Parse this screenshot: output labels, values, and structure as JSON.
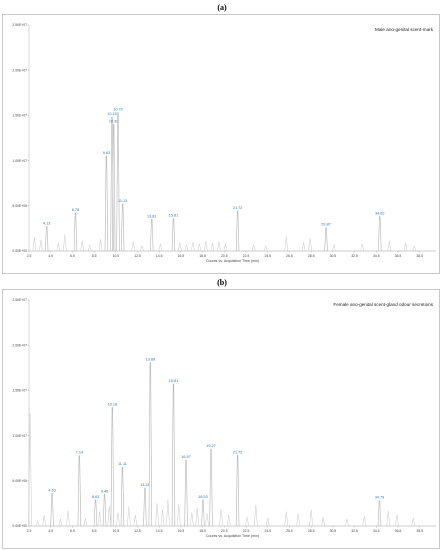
{
  "chart_data": [
    {
      "panel_label": "(a)",
      "type": "line",
      "title": "Male ano-genital scent-mark",
      "xlabel": "Counts vs. Acquisition Time (min)",
      "ylabel": "",
      "xlim": [
        2.5,
        40
      ],
      "ylim": [
        0,
        25000000
      ],
      "x_ticks": [
        "2.5",
        "4.5",
        "6.5",
        "8.5",
        "10.5",
        "12.5",
        "14.5",
        "16.5",
        "18.5",
        "20.5",
        "22.5",
        "24.5",
        "26.5",
        "28.5",
        "30.5",
        "32.5",
        "34.5",
        "36.5",
        "38.5"
      ],
      "y_ticks": [
        "0.00E+00",
        "5.00E+06",
        "1.00E+07",
        "1.50E+07",
        "2.00E+07",
        "2.50E+07"
      ],
      "peaks": [
        {
          "x": 4.13,
          "y": 2700000,
          "label": "4.13"
        },
        {
          "x": 6.78,
          "y": 4200000,
          "label": "6.78"
        },
        {
          "x": 9.63,
          "y": 10500000,
          "label": "9.63"
        },
        {
          "x": 10.15,
          "y": 14800000,
          "label": "10.15"
        },
        {
          "x": 10.3,
          "y": 14000000,
          "label": "10.30"
        },
        {
          "x": 10.7,
          "y": 15300000,
          "label": "10.70"
        },
        {
          "x": 11.13,
          "y": 5200000,
          "label": "11.13"
        },
        {
          "x": 13.81,
          "y": 3500000,
          "label": "13.81"
        },
        {
          "x": 15.81,
          "y": 3600000,
          "label": "15.81"
        },
        {
          "x": 21.72,
          "y": 4400000,
          "label": "21.72"
        },
        {
          "x": 29.87,
          "y": 2600000,
          "label": "29.87"
        },
        {
          "x": 34.82,
          "y": 3800000,
          "label": "34.82"
        }
      ],
      "minor_peaks": [
        {
          "x": 3.0,
          "y": 1500000
        },
        {
          "x": 3.6,
          "y": 1200000
        },
        {
          "x": 5.2,
          "y": 900000
        },
        {
          "x": 5.8,
          "y": 1800000
        },
        {
          "x": 7.4,
          "y": 1100000
        },
        {
          "x": 8.1,
          "y": 700000
        },
        {
          "x": 9.1,
          "y": 1300000
        },
        {
          "x": 12.1,
          "y": 1000000
        },
        {
          "x": 12.9,
          "y": 600000
        },
        {
          "x": 14.6,
          "y": 800000
        },
        {
          "x": 16.4,
          "y": 900000
        },
        {
          "x": 17.0,
          "y": 700000
        },
        {
          "x": 17.6,
          "y": 1000000
        },
        {
          "x": 18.2,
          "y": 800000
        },
        {
          "x": 18.8,
          "y": 1100000
        },
        {
          "x": 19.4,
          "y": 900000
        },
        {
          "x": 20.0,
          "y": 1000000
        },
        {
          "x": 20.6,
          "y": 800000
        },
        {
          "x": 23.2,
          "y": 700000
        },
        {
          "x": 24.3,
          "y": 600000
        },
        {
          "x": 26.2,
          "y": 1600000
        },
        {
          "x": 27.8,
          "y": 900000
        },
        {
          "x": 28.4,
          "y": 1400000
        },
        {
          "x": 30.6,
          "y": 700000
        },
        {
          "x": 33.2,
          "y": 800000
        },
        {
          "x": 35.7,
          "y": 1100000
        },
        {
          "x": 37.2,
          "y": 900000
        },
        {
          "x": 38.0,
          "y": 600000
        }
      ]
    },
    {
      "panel_label": "(b)",
      "type": "line",
      "title": "Female ano-genital scent-gland odour secretions",
      "xlabel": "Counts vs. Acquisition Time (min)",
      "ylabel": "",
      "xlim": [
        2.5,
        40
      ],
      "ylim": [
        0,
        25000000
      ],
      "x_ticks": [
        "2.5",
        "4.5",
        "6.5",
        "8.5",
        "10.5",
        "12.5",
        "14.5",
        "16.5",
        "18.5",
        "20.5",
        "22.5",
        "24.5",
        "26.5",
        "28.5",
        "30.5",
        "32.5",
        "34.5",
        "36.5",
        "38.5"
      ],
      "y_ticks": [
        "0.00E+00",
        "5.00E+06",
        "1.00E+07",
        "1.50E+07",
        "2.00E+07",
        "2.50E+07"
      ],
      "peaks": [
        {
          "x": 4.63,
          "y": 3600000,
          "label": "4.63"
        },
        {
          "x": 7.14,
          "y": 7800000,
          "label": "7.14"
        },
        {
          "x": 8.63,
          "y": 2900000,
          "label": "8.63"
        },
        {
          "x": 9.46,
          "y": 3500000,
          "label": "9.46"
        },
        {
          "x": 10.18,
          "y": 13100000,
          "label": "10.18"
        },
        {
          "x": 11.11,
          "y": 6500000,
          "label": "11.11"
        },
        {
          "x": 13.18,
          "y": 4200000,
          "label": "13.18"
        },
        {
          "x": 13.68,
          "y": 18100000,
          "label": "13.68"
        },
        {
          "x": 15.81,
          "y": 15700000,
          "label": "15.81"
        },
        {
          "x": 16.97,
          "y": 7300000,
          "label": "16.97"
        },
        {
          "x": 18.53,
          "y": 2900000,
          "label": "18.53"
        },
        {
          "x": 19.27,
          "y": 8500000,
          "label": "19.27"
        },
        {
          "x": 21.72,
          "y": 7800000,
          "label": "21.72"
        },
        {
          "x": 34.79,
          "y": 2800000,
          "label": "34.79"
        }
      ],
      "minor_peaks": [
        {
          "x": 2.6,
          "y": 12500000
        },
        {
          "x": 3.3,
          "y": 600000
        },
        {
          "x": 3.9,
          "y": 1200000
        },
        {
          "x": 5.4,
          "y": 800000
        },
        {
          "x": 6.1,
          "y": 1700000
        },
        {
          "x": 7.7,
          "y": 900000
        },
        {
          "x": 9.0,
          "y": 1600000
        },
        {
          "x": 9.9,
          "y": 2200000
        },
        {
          "x": 10.7,
          "y": 1500000
        },
        {
          "x": 11.7,
          "y": 2100000
        },
        {
          "x": 12.3,
          "y": 1200000
        },
        {
          "x": 14.3,
          "y": 2500000
        },
        {
          "x": 14.8,
          "y": 1800000
        },
        {
          "x": 15.3,
          "y": 2900000
        },
        {
          "x": 16.3,
          "y": 2400000
        },
        {
          "x": 17.5,
          "y": 1500000
        },
        {
          "x": 18.0,
          "y": 2000000
        },
        {
          "x": 18.9,
          "y": 1400000
        },
        {
          "x": 20.2,
          "y": 1900000
        },
        {
          "x": 20.9,
          "y": 1200000
        },
        {
          "x": 22.6,
          "y": 1000000
        },
        {
          "x": 23.4,
          "y": 2300000
        },
        {
          "x": 24.5,
          "y": 900000
        },
        {
          "x": 26.2,
          "y": 1600000
        },
        {
          "x": 27.3,
          "y": 1400000
        },
        {
          "x": 28.5,
          "y": 1800000
        },
        {
          "x": 29.6,
          "y": 1000000
        },
        {
          "x": 31.8,
          "y": 800000
        },
        {
          "x": 33.4,
          "y": 1100000
        },
        {
          "x": 35.6,
          "y": 1700000
        },
        {
          "x": 36.4,
          "y": 1200000
        },
        {
          "x": 37.9,
          "y": 900000
        }
      ]
    }
  ]
}
